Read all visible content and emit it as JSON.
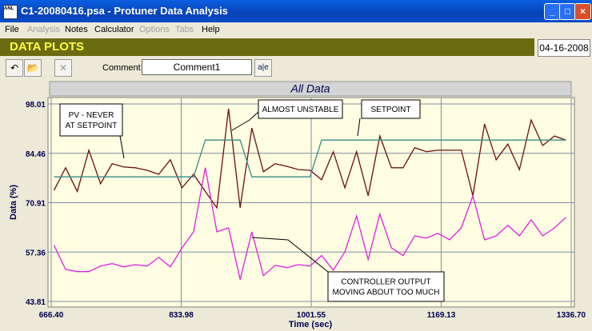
{
  "window": {
    "title": "C1-20080416.psa - Protuner Data  Analysis",
    "icon": "ANL"
  },
  "menu": [
    "File",
    "Analysis",
    "Notes",
    "Calculator",
    "Options",
    "Tabs",
    "Help"
  ],
  "header": {
    "title": "DATA PLOTS",
    "date": "04-16-2008"
  },
  "toolbar": {
    "comment_label": "Comment",
    "comment_value": "Comment1",
    "button": "a|e"
  },
  "chart_data": {
    "type": "line",
    "title": "All Data",
    "x_label": "Time (sec)",
    "y_label": "Data (%)",
    "x": [
      670,
      685,
      700,
      715,
      730,
      745,
      760,
      775,
      790,
      805,
      820,
      835,
      850,
      865,
      880,
      895,
      910,
      925,
      940,
      955,
      970,
      985,
      1000,
      1015,
      1030,
      1045,
      1060,
      1075,
      1090,
      1105,
      1120,
      1135,
      1150,
      1165,
      1180,
      1195,
      1210,
      1225,
      1240,
      1255,
      1270,
      1285,
      1300,
      1315,
      1330
    ],
    "series": [
      {
        "name": "PV",
        "color": "#6b1010",
        "values": [
          74.3,
          80.5,
          74.0,
          85.3,
          76.1,
          81.6,
          80.7,
          80.5,
          79.8,
          78.7,
          82.7,
          75.0,
          78.7,
          74.0,
          69.5,
          96.7,
          69.5,
          91.4,
          79.4,
          81.6,
          80.9,
          80.0,
          79.8,
          77.2,
          84.9,
          75.0,
          84.9,
          72.8,
          89.2,
          80.5,
          80.5,
          86.0,
          84.9,
          85.3,
          85.3,
          85.3,
          72.8,
          92.5,
          82.7,
          87.0,
          80.0,
          93.6,
          86.6,
          89.2,
          88.1
        ]
      },
      {
        "name": "Setpoint",
        "color": "#3a8a8a",
        "values": [
          78.0,
          78.0,
          78.0,
          78.0,
          78.0,
          78.0,
          78.0,
          78.0,
          78.0,
          78.0,
          78.0,
          78.0,
          78.0,
          88.1,
          88.1,
          88.1,
          88.1,
          78.0,
          78.0,
          78.0,
          78.0,
          78.0,
          78.0,
          88.1,
          88.1,
          88.1,
          88.1,
          88.1,
          88.1,
          88.1,
          88.1,
          88.1,
          88.1,
          88.1,
          88.1,
          88.1,
          88.1,
          88.1,
          88.1,
          88.1,
          88.1,
          88.1,
          88.1,
          88.1,
          88.1
        ]
      },
      {
        "name": "Controller Output",
        "color": "#e020e0",
        "values": [
          59.2,
          52.6,
          52.0,
          52.0,
          53.5,
          54.2,
          53.3,
          53.9,
          53.5,
          55.9,
          53.3,
          58.5,
          62.9,
          80.5,
          62.9,
          64.0,
          49.8,
          62.9,
          50.9,
          53.7,
          53.1,
          53.9,
          53.5,
          56.4,
          52.4,
          57.4,
          67.3,
          55.3,
          67.8,
          58.5,
          56.4,
          61.8,
          61.2,
          62.5,
          60.7,
          64.0,
          72.8,
          60.7,
          61.8,
          64.7,
          61.8,
          66.2,
          61.8,
          64.0,
          66.9
        ]
      }
    ],
    "xlim": [
      666.4,
      1336.7
    ],
    "xticks": [
      {
        "value": 666.4,
        "label": "666.40"
      },
      833.98,
      1001.55,
      1169.13,
      {
        "value": 1336.7,
        "label": "1336.70"
      }
    ],
    "ylim": [
      43.81,
      98.01
    ],
    "yticks": [
      43.81,
      57.36,
      70.91,
      84.46,
      98.01
    ],
    "grid": true,
    "annotations": [
      {
        "lines": [
          "PV - NEVER",
          "AT SETPOINT"
        ]
      },
      {
        "lines": [
          "ALMOST UNSTABLE"
        ]
      },
      {
        "lines": [
          "SETPOINT"
        ]
      },
      {
        "lines": [
          "CONTROLLER OUTPUT",
          "MOVING ABOUT TOO MUCH"
        ]
      }
    ]
  }
}
